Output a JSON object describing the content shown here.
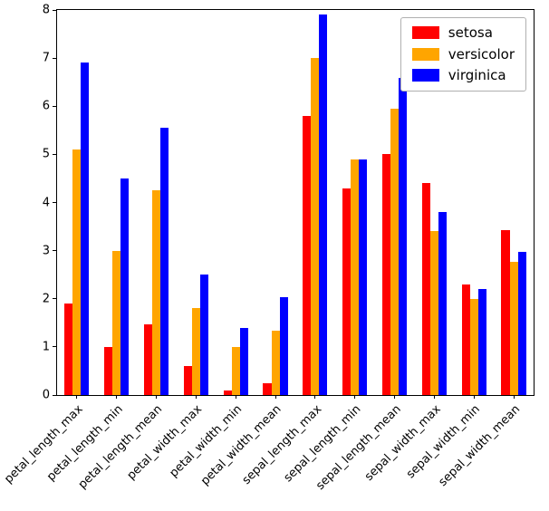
{
  "chart_data": {
    "type": "bar",
    "title": "",
    "xlabel": "",
    "ylabel": "",
    "grid": false,
    "legend_position": "upper right",
    "ylim": [
      0,
      8
    ],
    "yticks": [
      0,
      1,
      2,
      3,
      4,
      5,
      6,
      7,
      8
    ],
    "categories": [
      "petal_length_max",
      "petal_length_min",
      "petal_length_mean",
      "petal_width_max",
      "petal_width_min",
      "petal_width_mean",
      "sepal_length_max",
      "sepal_length_min",
      "sepal_length_mean",
      "sepal_width_max",
      "sepal_width_min",
      "sepal_width_mean"
    ],
    "series": [
      {
        "name": "setosa",
        "color": "#ff0000",
        "values": [
          1.9,
          1.0,
          1.46,
          0.6,
          0.1,
          0.25,
          5.8,
          4.3,
          5.01,
          4.4,
          2.3,
          3.43
        ]
      },
      {
        "name": "versicolor",
        "color": "#ffa500",
        "values": [
          5.1,
          3.0,
          4.26,
          1.8,
          1.0,
          1.33,
          7.0,
          4.9,
          5.94,
          3.4,
          2.0,
          2.77
        ]
      },
      {
        "name": "virginica",
        "color": "#0000ff",
        "values": [
          6.9,
          4.5,
          5.55,
          2.5,
          1.4,
          2.03,
          7.9,
          4.9,
          6.59,
          3.8,
          2.2,
          2.97
        ]
      }
    ],
    "colors": {
      "axis": "#000000",
      "background": "#ffffff",
      "legend_border": "#b0b0b0"
    }
  }
}
